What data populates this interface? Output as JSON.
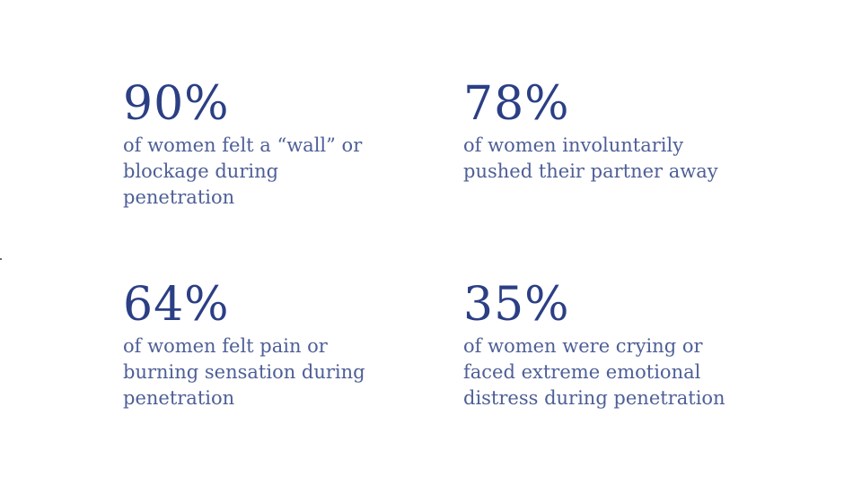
{
  "stats": [
    {
      "value": "90%",
      "lines": [
        "of women felt a “wall” or",
        "blockage during",
        "penetration"
      ]
    },
    {
      "value": "78%",
      "lines": [
        "of women involuntarily",
        "pushed their partner away"
      ]
    },
    {
      "value": "64%",
      "lines": [
        "of women felt pain or",
        "burning sensation during",
        "penetration"
      ]
    },
    {
      "value": "35%",
      "lines": [
        "of women were crying or",
        "faced extreme emotional",
        "distress during penetration"
      ]
    }
  ],
  "colors": {
    "value_text": "#2b3f85",
    "description_text": "#4e5f97",
    "background": "#ffffff"
  }
}
